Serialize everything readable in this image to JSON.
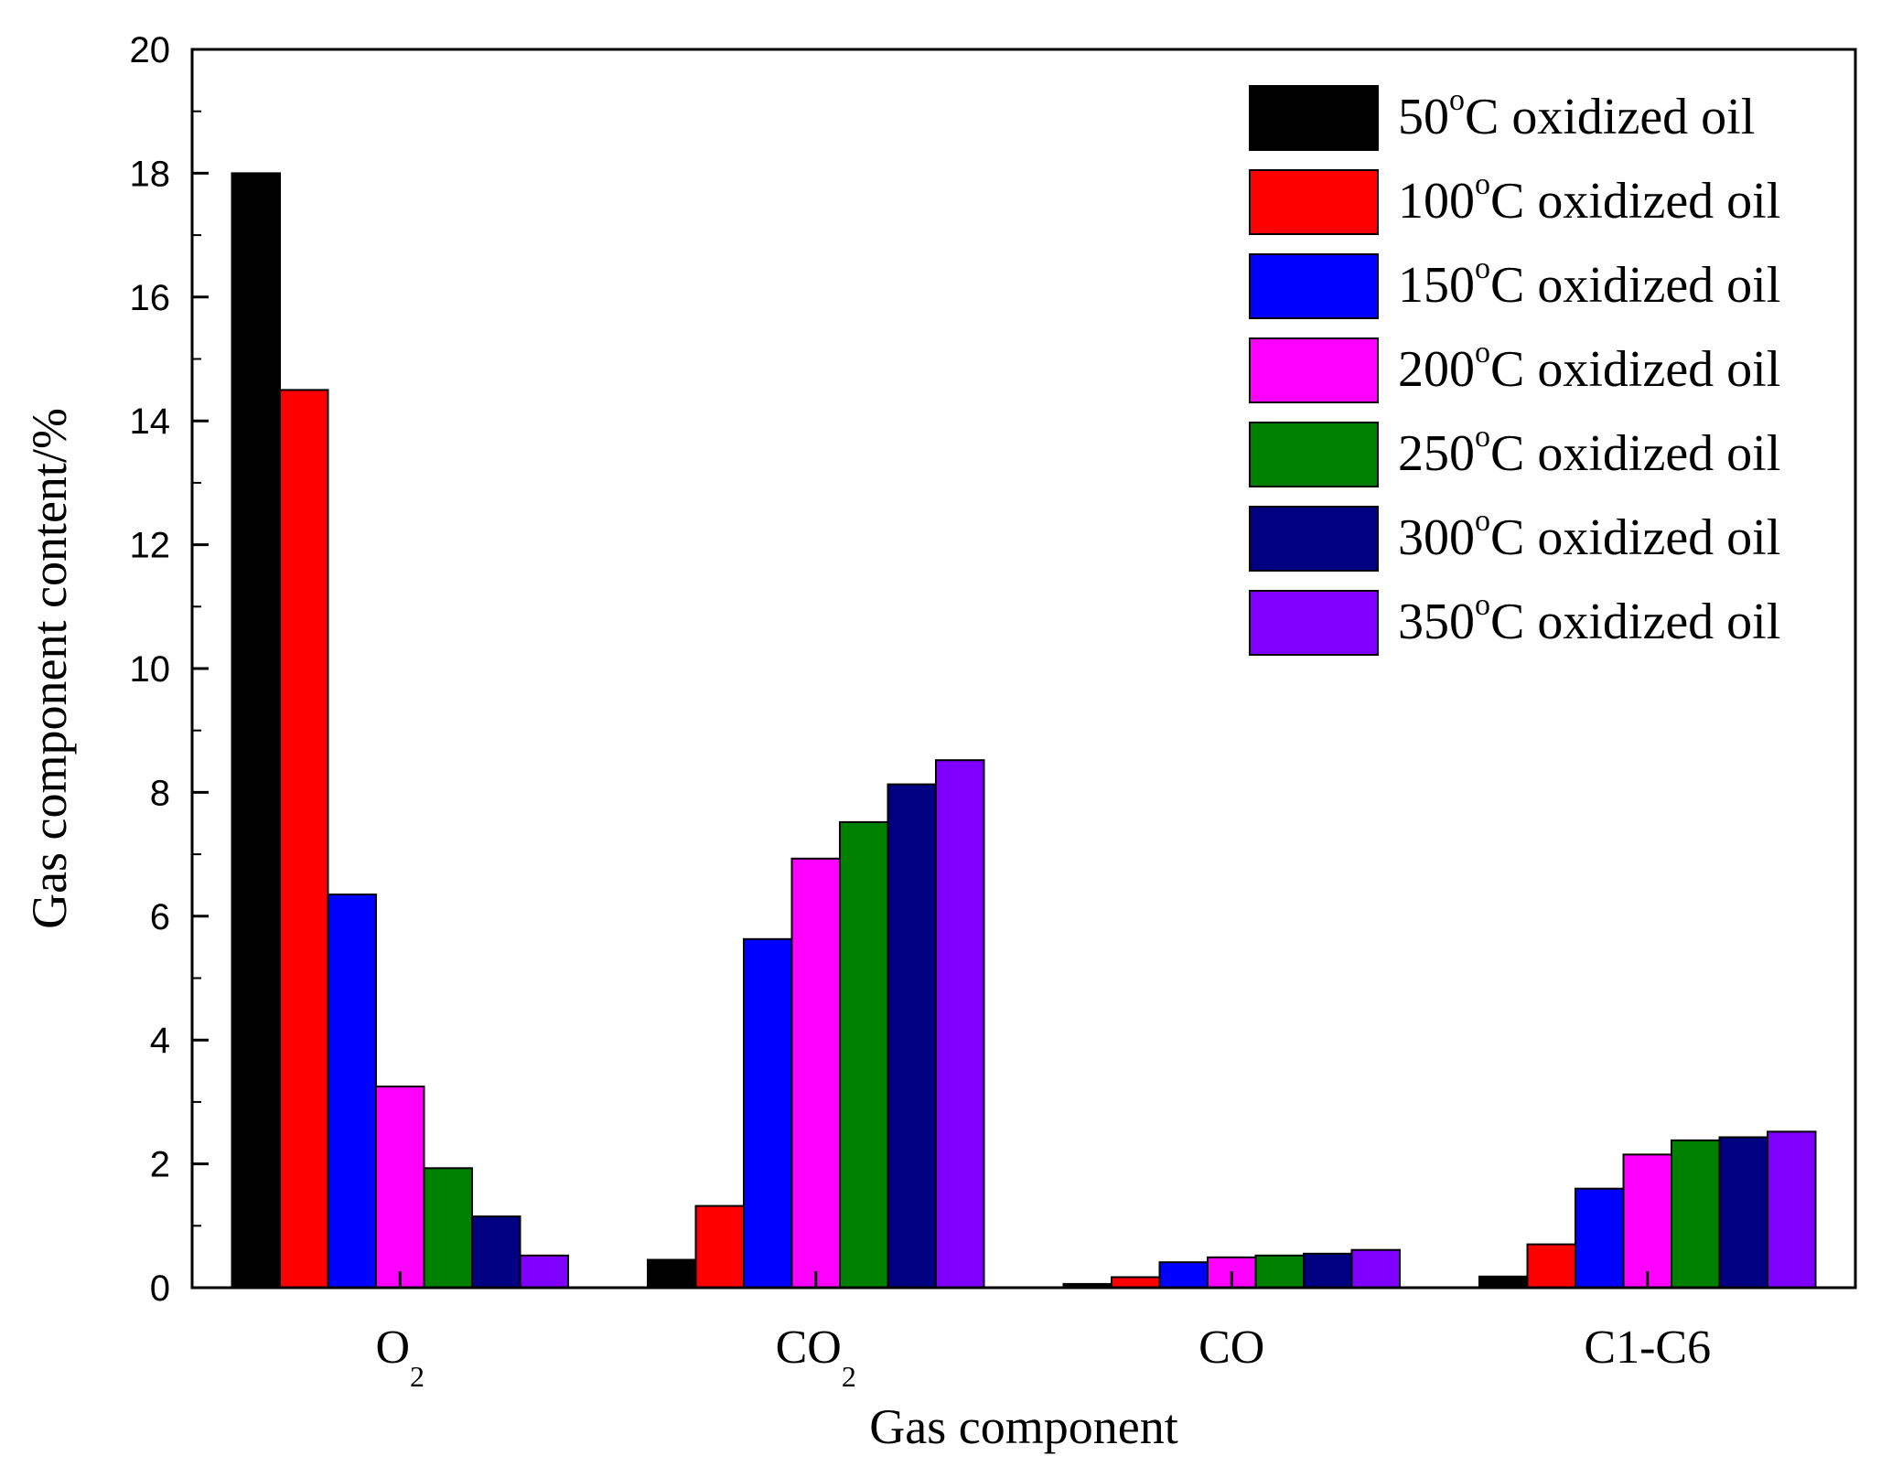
{
  "chart_data": {
    "type": "bar",
    "title": "",
    "xlabel": "Gas component",
    "ylabel": "Gas component content/%",
    "ylim": [
      0,
      20
    ],
    "yticks": [
      0,
      2,
      4,
      6,
      8,
      10,
      12,
      14,
      16,
      18,
      20
    ],
    "categories": [
      {
        "base": "O",
        "sub": "2"
      },
      {
        "base": "CO",
        "sub": "2"
      },
      {
        "base": "CO",
        "sub": ""
      },
      {
        "base": "C1-C6",
        "sub": ""
      }
    ],
    "legend_position": "top-right",
    "series": [
      {
        "temp": "50",
        "sup": "o",
        "rest": "C oxidized oil",
        "color": "#000000",
        "values": [
          18.0,
          0.45,
          0.06,
          0.18
        ]
      },
      {
        "temp": "100",
        "sup": "o",
        "rest": "C oxidized oil",
        "color": "#ff0000",
        "values": [
          14.5,
          1.32,
          0.17,
          0.7
        ]
      },
      {
        "temp": "150",
        "sup": "o",
        "rest": "C oxidized oil",
        "color": "#0000ff",
        "values": [
          6.35,
          5.63,
          0.41,
          1.6
        ]
      },
      {
        "temp": "200",
        "sup": "o",
        "rest": "C oxidized oil",
        "color": "#ff00ff",
        "values": [
          3.25,
          6.93,
          0.49,
          2.15
        ]
      },
      {
        "temp": "250",
        "sup": "o",
        "rest": "C oxidized oil",
        "color": "#008000",
        "values": [
          1.93,
          7.52,
          0.52,
          2.38
        ]
      },
      {
        "temp": "300",
        "sup": "o",
        "rest": "C oxidized oil",
        "color": "#000080",
        "values": [
          1.15,
          8.13,
          0.55,
          2.43
        ]
      },
      {
        "temp": "350",
        "sup": "o",
        "rest": "C oxidized oil",
        "color": "#8000ff",
        "values": [
          0.52,
          8.52,
          0.61,
          2.52
        ]
      }
    ]
  }
}
